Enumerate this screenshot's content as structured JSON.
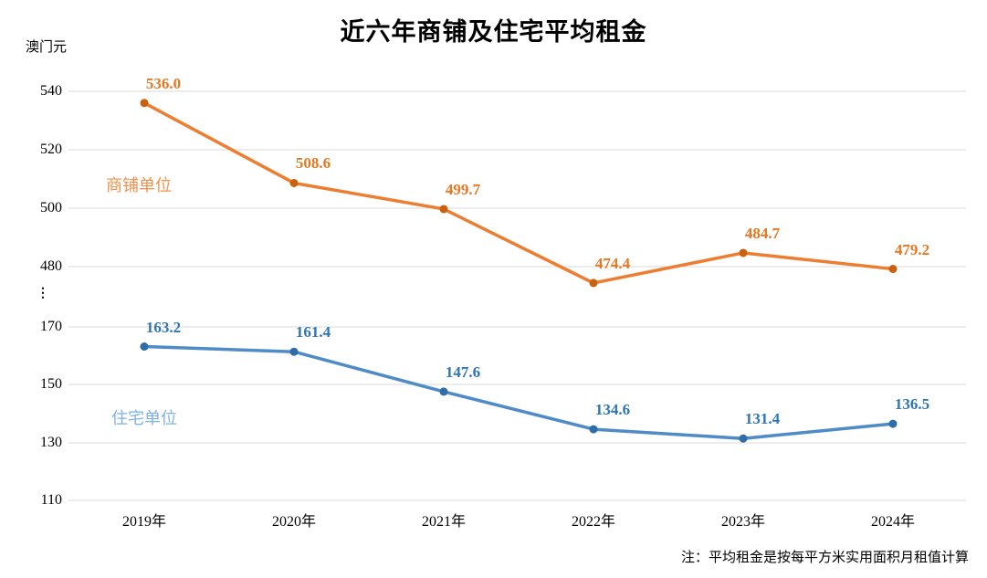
{
  "title": "近六年商铺及住宅平均租金",
  "y_axis_unit": "澳门元",
  "footnote": "注：平均租金是按每平方米实用面积月租值计算",
  "chart_data": {
    "type": "line",
    "title": "近六年商铺及住宅平均租金",
    "ylabel": "澳门元",
    "xlabel": "",
    "categories": [
      "2019年",
      "2020年",
      "2021年",
      "2022年",
      "2023年",
      "2024年"
    ],
    "series": [
      {
        "name": "商铺单位",
        "axis_segment": "upper",
        "values": [
          536.0,
          508.6,
          499.7,
          474.4,
          484.7,
          479.2
        ],
        "line_color": "#ED7D31",
        "marker_color": "#C9610F",
        "label_color": "#E87722",
        "name_color": "#F0924D"
      },
      {
        "name": "住宅单位",
        "axis_segment": "lower",
        "values": [
          163.2,
          161.4,
          147.6,
          134.6,
          131.4,
          136.5
        ],
        "line_color": "#4E8BC8",
        "marker_color": "#2E6DA8",
        "label_color": "#2E75B6",
        "name_color": "#7FB2E2"
      }
    ],
    "axis_break": true,
    "axis_break_symbol": "⋮",
    "upper_axis_ticks": [
      540,
      520,
      500,
      480
    ],
    "lower_axis_ticks": [
      170,
      150,
      130,
      110
    ],
    "grid": true,
    "gridline_color": "#D9D9D9",
    "value_label_format": "0.0",
    "legend_position": "inline-left"
  }
}
